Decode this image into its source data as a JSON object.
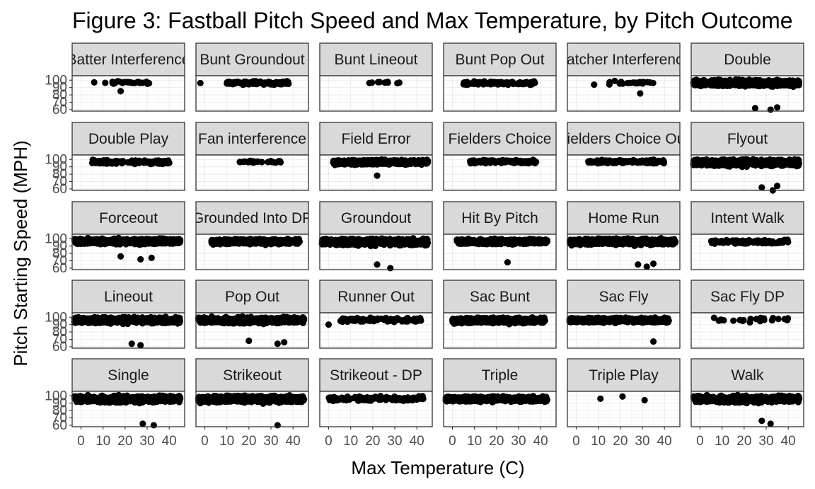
{
  "chart_data": {
    "type": "scatter",
    "title": "Figure 3: Fastball Pitch Speed and Max Temperature, by Pitch Outcome",
    "xlabel": "Max Temperature (C)",
    "ylabel": "Pitch Starting Speed (MPH)",
    "facet_layout": {
      "rows": 5,
      "cols": 6
    },
    "xlim": [
      -4,
      47
    ],
    "ylim": [
      58,
      106
    ],
    "x_ticks": [
      0,
      10,
      20,
      30,
      40
    ],
    "x_tick_labels": [
      "0",
      "10",
      "20",
      "30",
      "40"
    ],
    "y_ticks": [
      60,
      70,
      80,
      90,
      100
    ],
    "y_tick_labels": [
      "60",
      "70",
      "80",
      "90",
      "100"
    ],
    "grid": true,
    "point_color": "#000000",
    "facets": [
      {
        "label": "Batter Interference",
        "x_range": [
          8,
          35
        ],
        "y_range": [
          88,
          99
        ],
        "outliers": [
          [
            6,
            97
          ],
          [
            18,
            85
          ]
        ],
        "density": "sparse"
      },
      {
        "label": "Bunt Groundout",
        "x_range": [
          10,
          38
        ],
        "y_range": [
          86,
          99
        ],
        "outliers": [
          [
            -2,
            96
          ]
        ],
        "density": "medium"
      },
      {
        "label": "Bunt Lineout",
        "x_range": [
          18,
          33
        ],
        "y_range": [
          90,
          99
        ],
        "outliers": [],
        "density": "very-sparse"
      },
      {
        "label": "Bunt Pop Out",
        "x_range": [
          5,
          38
        ],
        "y_range": [
          86,
          99
        ],
        "outliers": [],
        "density": "medium"
      },
      {
        "label": "Catcher Interference",
        "x_range": [
          8,
          35
        ],
        "y_range": [
          86,
          99
        ],
        "outliers": [
          [
            29,
            82
          ]
        ],
        "density": "sparse"
      },
      {
        "label": "Double",
        "x_range": [
          -3,
          45
        ],
        "y_range": [
          78,
          101
        ],
        "outliers": [
          [
            25,
            62
          ],
          [
            32,
            60
          ],
          [
            35,
            63
          ]
        ],
        "density": "dense"
      },
      {
        "label": "Double Play",
        "x_range": [
          5,
          40
        ],
        "y_range": [
          84,
          100
        ],
        "outliers": [],
        "density": "medium"
      },
      {
        "label": "Fan interference",
        "x_range": [
          15,
          35
        ],
        "y_range": [
          88,
          99
        ],
        "outliers": [],
        "density": "sparse"
      },
      {
        "label": "Field Error",
        "x_range": [
          2,
          45
        ],
        "y_range": [
          83,
          100
        ],
        "outliers": [
          [
            22,
            78
          ]
        ],
        "density": "dense"
      },
      {
        "label": "Fielders Choice",
        "x_range": [
          8,
          38
        ],
        "y_range": [
          86,
          100
        ],
        "outliers": [],
        "density": "medium"
      },
      {
        "label": "Fielders Choice Out",
        "x_range": [
          5,
          40
        ],
        "y_range": [
          86,
          100
        ],
        "outliers": [],
        "density": "medium"
      },
      {
        "label": "Flyout",
        "x_range": [
          -3,
          45
        ],
        "y_range": [
          76,
          101
        ],
        "outliers": [
          [
            28,
            62
          ],
          [
            33,
            58
          ],
          [
            35,
            64
          ]
        ],
        "density": "dense"
      },
      {
        "label": "Forceout",
        "x_range": [
          -3,
          45
        ],
        "y_range": [
          80,
          101
        ],
        "outliers": [
          [
            18,
            76
          ],
          [
            27,
            72
          ],
          [
            32,
            74
          ]
        ],
        "density": "dense"
      },
      {
        "label": "Grounded Into DP",
        "x_range": [
          3,
          43
        ],
        "y_range": [
          82,
          100
        ],
        "outliers": [],
        "density": "dense"
      },
      {
        "label": "Groundout",
        "x_range": [
          -3,
          45
        ],
        "y_range": [
          76,
          101
        ],
        "outliers": [
          [
            22,
            65
          ],
          [
            28,
            60
          ]
        ],
        "density": "dense"
      },
      {
        "label": "Hit By Pitch",
        "x_range": [
          2,
          43
        ],
        "y_range": [
          82,
          100
        ],
        "outliers": [
          [
            25,
            68
          ]
        ],
        "density": "dense"
      },
      {
        "label": "Home Run",
        "x_range": [
          -3,
          45
        ],
        "y_range": [
          78,
          101
        ],
        "outliers": [
          [
            28,
            65
          ],
          [
            32,
            62
          ],
          [
            35,
            66
          ]
        ],
        "density": "dense"
      },
      {
        "label": "Intent Walk",
        "x_range": [
          5,
          40
        ],
        "y_range": [
          84,
          99
        ],
        "outliers": [],
        "density": "medium"
      },
      {
        "label": "Lineout",
        "x_range": [
          -3,
          45
        ],
        "y_range": [
          78,
          101
        ],
        "outliers": [
          [
            23,
            64
          ],
          [
            27,
            62
          ]
        ],
        "density": "dense"
      },
      {
        "label": "Pop Out",
        "x_range": [
          -3,
          45
        ],
        "y_range": [
          78,
          101
        ],
        "outliers": [
          [
            20,
            68
          ],
          [
            33,
            64
          ],
          [
            36,
            66
          ]
        ],
        "density": "dense"
      },
      {
        "label": "Runner Out",
        "x_range": [
          5,
          42
        ],
        "y_range": [
          84,
          100
        ],
        "outliers": [
          [
            0,
            90
          ]
        ],
        "density": "medium"
      },
      {
        "label": "Sac Bunt",
        "x_range": [
          0,
          42
        ],
        "y_range": [
          80,
          100
        ],
        "outliers": [],
        "density": "dense"
      },
      {
        "label": "Sac Fly",
        "x_range": [
          -3,
          42
        ],
        "y_range": [
          82,
          100
        ],
        "outliers": [
          [
            35,
            67
          ]
        ],
        "density": "dense"
      },
      {
        "label": "Sac Fly DP",
        "x_range": [
          5,
          40
        ],
        "y_range": [
          84,
          100
        ],
        "outliers": [],
        "density": "sparse"
      },
      {
        "label": "Single",
        "x_range": [
          -3,
          45
        ],
        "y_range": [
          76,
          101
        ],
        "outliers": [
          [
            28,
            62
          ],
          [
            33,
            60
          ]
        ],
        "density": "dense"
      },
      {
        "label": "Strikeout",
        "x_range": [
          -3,
          45
        ],
        "y_range": [
          76,
          101
        ],
        "outliers": [
          [
            33,
            60
          ]
        ],
        "density": "dense"
      },
      {
        "label": "Strikeout - DP",
        "x_range": [
          0,
          43
        ],
        "y_range": [
          82,
          100
        ],
        "outliers": [],
        "density": "medium"
      },
      {
        "label": "Triple",
        "x_range": [
          -3,
          43
        ],
        "y_range": [
          80,
          100
        ],
        "outliers": [],
        "density": "dense"
      },
      {
        "label": "Triple Play",
        "x_range": [
          11,
          32
        ],
        "y_range": [
          92,
          99
        ],
        "outliers": [],
        "points": [
          [
            11,
            96
          ],
          [
            21,
            99
          ],
          [
            31,
            94
          ]
        ],
        "density": "explicit"
      },
      {
        "label": "Walk",
        "x_range": [
          -3,
          45
        ],
        "y_range": [
          76,
          101
        ],
        "outliers": [
          [
            28,
            66
          ],
          [
            32,
            62
          ]
        ],
        "density": "dense"
      }
    ]
  }
}
